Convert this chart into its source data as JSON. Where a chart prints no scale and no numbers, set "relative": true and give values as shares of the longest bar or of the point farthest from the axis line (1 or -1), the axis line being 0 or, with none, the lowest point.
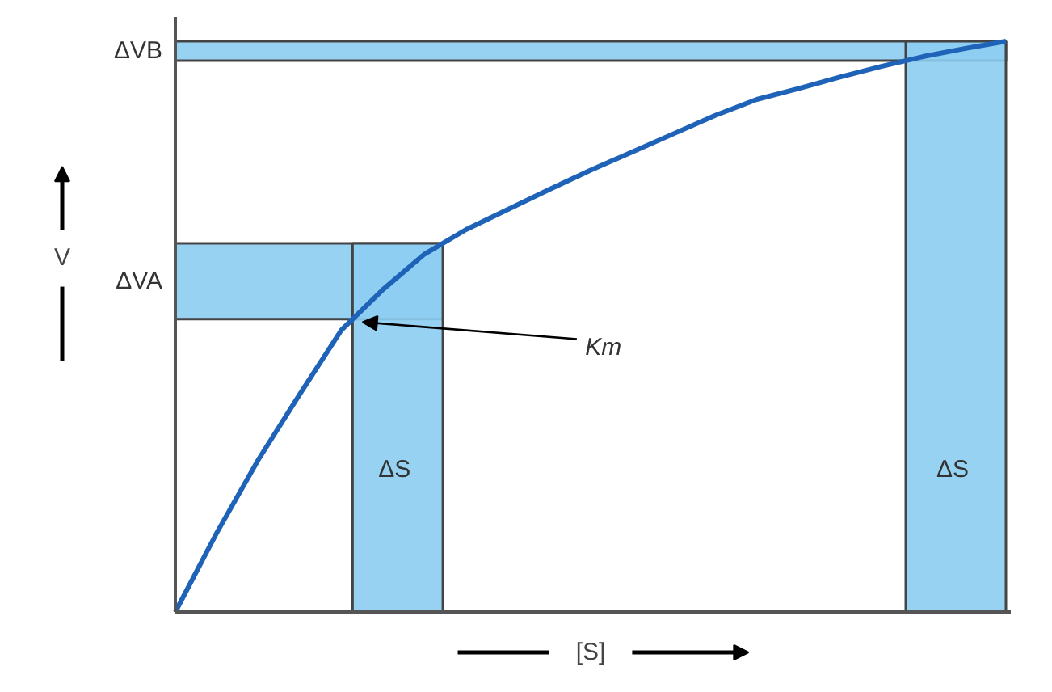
{
  "chart_data": {
    "type": "line",
    "relative": true,
    "xlabel": "[S]",
    "ylabel": "V",
    "categories": [
      null,
      null,
      null,
      null,
      null,
      null,
      null,
      null,
      null,
      null,
      null,
      null,
      null,
      null,
      null,
      null,
      null,
      null,
      null,
      null,
      null
    ],
    "series": [
      {
        "color": "#1f63b8",
        "values": [
          0,
          0.139,
          0.267,
          0.382,
          0.494,
          0.565,
          0.627,
          0.67,
          0.705,
          0.74,
          0.774,
          0.806,
          0.838,
          0.87,
          0.898,
          0.917,
          0.937,
          0.956,
          0.973,
          0.987,
          1
        ]
      }
    ],
    "bands": [
      {
        "axis": "y",
        "from": 0.513,
        "to": 0.646,
        "label": "ΔVA",
        "color": "#8ccdf2"
      },
      {
        "axis": "y",
        "from": 0.966,
        "to": 1,
        "label": "ΔVB",
        "color": "#8ccdf2"
      }
    ],
    "annotations": [
      "ΔS",
      "ΔS",
      "Km"
    ]
  }
}
